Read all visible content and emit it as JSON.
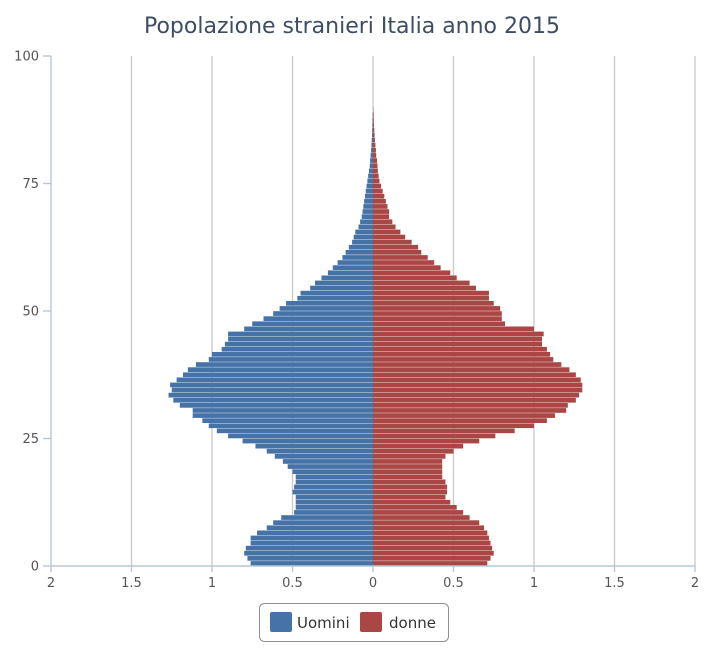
{
  "chart_data": {
    "type": "bar",
    "orientation": "horizontal-population-pyramid",
    "title": "Popolazione stranieri Italia anno 2015",
    "xlabel": "",
    "ylabel": "",
    "xlim": [
      -2,
      2
    ],
    "ylim": [
      0,
      100
    ],
    "x_ticks": [
      {
        "value": -2,
        "label": "2"
      },
      {
        "value": -1.5,
        "label": "1.5"
      },
      {
        "value": -1,
        "label": "1"
      },
      {
        "value": -0.5,
        "label": "0.5"
      },
      {
        "value": 0,
        "label": "0"
      },
      {
        "value": 0.5,
        "label": "0.5"
      },
      {
        "value": 1,
        "label": "1"
      },
      {
        "value": 1.5,
        "label": "1.5"
      },
      {
        "value": 2,
        "label": "2"
      }
    ],
    "y_ticks": [
      {
        "value": 0,
        "label": "0"
      },
      {
        "value": 25,
        "label": "25"
      },
      {
        "value": 50,
        "label": "50"
      },
      {
        "value": 75,
        "label": "75"
      },
      {
        "value": 100,
        "label": "100"
      }
    ],
    "grid": "vertical",
    "legend_position": "bottom-center",
    "ages": [
      0,
      1,
      2,
      3,
      4,
      5,
      6,
      7,
      8,
      9,
      10,
      11,
      12,
      13,
      14,
      15,
      16,
      17,
      18,
      19,
      20,
      21,
      22,
      23,
      24,
      25,
      26,
      27,
      28,
      29,
      30,
      31,
      32,
      33,
      34,
      35,
      36,
      37,
      38,
      39,
      40,
      41,
      42,
      43,
      44,
      45,
      46,
      47,
      48,
      49,
      50,
      51,
      52,
      53,
      54,
      55,
      56,
      57,
      58,
      59,
      60,
      61,
      62,
      63,
      64,
      65,
      66,
      67,
      68,
      69,
      70,
      71,
      72,
      73,
      74,
      75,
      76,
      77,
      78,
      79,
      80,
      81,
      82,
      83,
      84,
      85,
      86,
      87,
      88,
      89,
      90
    ],
    "series": [
      {
        "name": "Uomini",
        "color": "#4572a7",
        "values": [
          0.76,
          0.78,
          0.8,
          0.79,
          0.76,
          0.76,
          0.72,
          0.66,
          0.62,
          0.57,
          0.49,
          0.48,
          0.48,
          0.48,
          0.5,
          0.49,
          0.48,
          0.48,
          0.5,
          0.53,
          0.56,
          0.61,
          0.66,
          0.73,
          0.81,
          0.9,
          0.97,
          1.02,
          1.06,
          1.12,
          1.12,
          1.2,
          1.24,
          1.27,
          1.25,
          1.26,
          1.22,
          1.18,
          1.15,
          1.1,
          1.02,
          1.0,
          0.94,
          0.92,
          0.9,
          0.9,
          0.8,
          0.75,
          0.68,
          0.62,
          0.58,
          0.54,
          0.47,
          0.45,
          0.39,
          0.36,
          0.32,
          0.28,
          0.25,
          0.22,
          0.19,
          0.17,
          0.15,
          0.13,
          0.12,
          0.11,
          0.09,
          0.08,
          0.07,
          0.065,
          0.06,
          0.055,
          0.05,
          0.045,
          0.04,
          0.035,
          0.03,
          0.025,
          0.02,
          0.018,
          0.015,
          0.012,
          0.01,
          0.008,
          0.006,
          0.005,
          0.004,
          0.003,
          0.002,
          0.0,
          0.0
        ]
      },
      {
        "name": "donne",
        "color": "#aa4643",
        "values": [
          0.71,
          0.73,
          0.75,
          0.74,
          0.73,
          0.72,
          0.71,
          0.69,
          0.66,
          0.6,
          0.56,
          0.52,
          0.48,
          0.45,
          0.46,
          0.46,
          0.45,
          0.43,
          0.43,
          0.43,
          0.43,
          0.45,
          0.5,
          0.56,
          0.66,
          0.76,
          0.88,
          1.0,
          1.08,
          1.13,
          1.2,
          1.21,
          1.26,
          1.28,
          1.3,
          1.3,
          1.29,
          1.26,
          1.22,
          1.17,
          1.12,
          1.1,
          1.08,
          1.05,
          1.05,
          1.06,
          1.0,
          0.82,
          0.8,
          0.8,
          0.79,
          0.75,
          0.72,
          0.72,
          0.64,
          0.6,
          0.52,
          0.48,
          0.42,
          0.38,
          0.34,
          0.3,
          0.28,
          0.24,
          0.2,
          0.17,
          0.14,
          0.12,
          0.1,
          0.1,
          0.09,
          0.08,
          0.07,
          0.06,
          0.05,
          0.04,
          0.035,
          0.03,
          0.028,
          0.025,
          0.02,
          0.018,
          0.015,
          0.012,
          0.01,
          0.008,
          0.006,
          0.005,
          0.004,
          0.002,
          0.0
        ]
      }
    ]
  }
}
